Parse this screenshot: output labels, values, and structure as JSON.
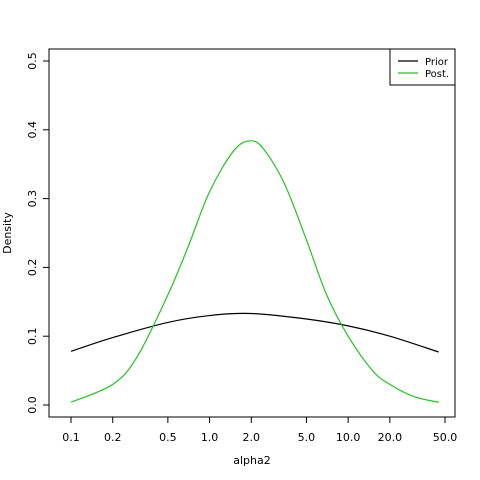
{
  "chart_data": {
    "type": "line",
    "title": "",
    "xlabel": "alpha2",
    "ylabel": "Density",
    "x_scale": "log",
    "xlim": [
      0.1,
      50
    ],
    "ylim": [
      0,
      0.5
    ],
    "x_ticks": [
      "0.1",
      "0.2",
      "0.5",
      "1.0",
      "2.0",
      "5.0",
      "10.0",
      "20.0",
      "50.0"
    ],
    "y_ticks": [
      "0.0",
      "0.1",
      "0.2",
      "0.3",
      "0.4",
      "0.5"
    ],
    "grid": false,
    "legend_position": "top-right",
    "series": [
      {
        "name": "Prior",
        "color": "#000000",
        "x": [
          0.1,
          0.2,
          0.5,
          1.0,
          2.0,
          5.0,
          10.0,
          20.0,
          45.0
        ],
        "y": [
          0.078,
          0.098,
          0.12,
          0.13,
          0.133,
          0.125,
          0.115,
          0.1,
          0.077
        ]
      },
      {
        "name": "Post.",
        "color": "#22c322",
        "x": [
          0.1,
          0.2,
          0.3,
          0.5,
          0.7,
          1.0,
          1.5,
          2.0,
          2.5,
          3.5,
          5.0,
          7.0,
          10.0,
          15.0,
          20.0,
          30.0,
          45.0
        ],
        "y": [
          0.004,
          0.03,
          0.07,
          0.16,
          0.23,
          0.31,
          0.37,
          0.384,
          0.37,
          0.32,
          0.24,
          0.16,
          0.1,
          0.05,
          0.03,
          0.012,
          0.004
        ]
      }
    ]
  }
}
